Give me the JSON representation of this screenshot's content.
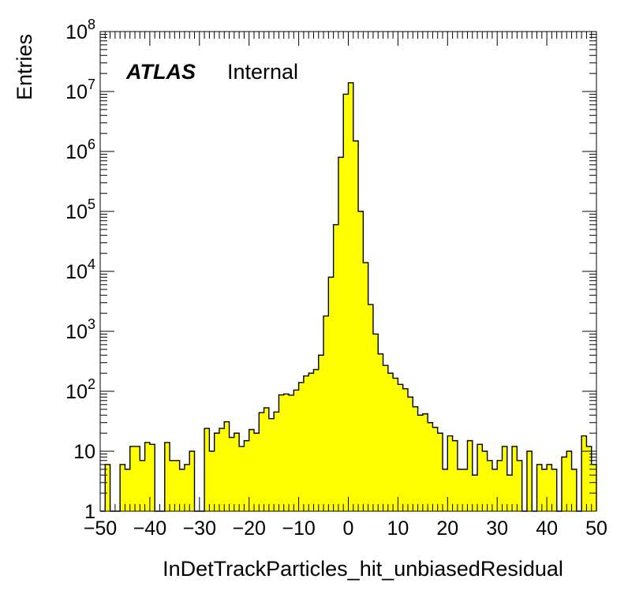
{
  "chart_data": {
    "type": "bar",
    "subtype": "step-histogram",
    "xlabel": "InDetTrackParticles_hit_unbiasedResidual",
    "ylabel": "Entries",
    "xlim": [
      -50,
      50
    ],
    "ylim": [
      1,
      100000000
    ],
    "yscale": "log",
    "bin_width": 1,
    "fill_color": "#ffff00",
    "line_color": "#000000",
    "atlas_label": "ATLAS",
    "atlas_status": "Internal",
    "x_ticks": [
      "−50",
      "−40",
      "−30",
      "−20",
      "−10",
      "0",
      "10",
      "20",
      "30",
      "40",
      "50"
    ],
    "y_ticks": [
      {
        "base": "1",
        "exp": ""
      },
      {
        "base": "10",
        "exp": ""
      },
      {
        "base": "10",
        "exp": "2"
      },
      {
        "base": "10",
        "exp": "3"
      },
      {
        "base": "10",
        "exp": "4"
      },
      {
        "base": "10",
        "exp": "5"
      },
      {
        "base": "10",
        "exp": "6"
      },
      {
        "base": "10",
        "exp": "7"
      },
      {
        "base": "10",
        "exp": "8"
      }
    ],
    "bin_edges_start": -50,
    "values": [
      0,
      6,
      0,
      0,
      6,
      5,
      12,
      12,
      7,
      14,
      13,
      0,
      1,
      14,
      7,
      7,
      5,
      6,
      10,
      0,
      0,
      24,
      10,
      20,
      24,
      31,
      17,
      20,
      12,
      15,
      23,
      20,
      44,
      53,
      35,
      45,
      87,
      90,
      86,
      105,
      140,
      180,
      200,
      230,
      400,
      1800,
      8000,
      60000,
      800000,
      9000000,
      14000000,
      1500000,
      100000,
      14000,
      2800,
      900,
      420,
      270,
      200,
      165,
      130,
      110,
      80,
      55,
      40,
      42,
      30,
      25,
      20,
      5,
      18,
      15,
      5,
      5,
      15,
      4,
      13,
      10,
      7,
      5,
      7,
      12,
      4,
      12,
      7,
      1,
      10,
      1,
      6,
      5,
      6,
      5,
      1,
      8,
      10,
      5,
      1,
      18,
      12,
      6
    ]
  }
}
